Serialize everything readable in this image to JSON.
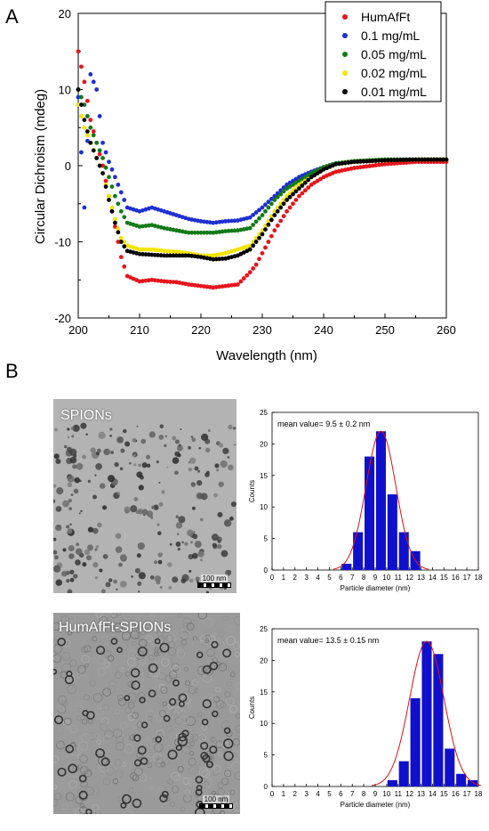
{
  "panels": {
    "a": "A",
    "b": "B"
  },
  "cd_chart": {
    "ylabel": "Circular Dichroism (mdeg)",
    "xlabel": "Wavelength (nm)"
  },
  "micrographs": {
    "spions": {
      "label": "SPIONs",
      "scale": "100 nm"
    },
    "humafft": {
      "label": "HumAfFt-SPIONs",
      "scale": "100 nm"
    }
  },
  "colors": {
    "HumAfFt": "#e8141b",
    "0.1 mg/mL": "#1f2fd2",
    "0.05 mg/mL": "#137a18",
    "0.02 mg/mL": "#f2e400",
    "0.01 mg/mL": "#000000",
    "hist_bar": "#1010cc",
    "fit_line": "#e01010"
  },
  "chart_data": [
    {
      "type": "scatter",
      "xlabel": "Wavelength (nm)",
      "ylabel": "Circular Dichroism (mdeg)",
      "xlim": [
        200,
        260
      ],
      "ylim": [
        -20,
        20
      ],
      "xticks": [
        200,
        210,
        220,
        230,
        240,
        250,
        260
      ],
      "yticks": [
        -20,
        -10,
        0,
        10,
        20
      ],
      "legend_position": "top-right",
      "grid": false,
      "series": [
        {
          "name": "HumAfFt",
          "x": [
            200,
            201,
            202,
            203,
            204,
            205,
            206,
            207,
            208,
            210,
            212,
            214,
            216,
            218,
            220,
            222,
            224,
            226,
            228,
            229,
            230,
            231,
            232,
            234,
            236,
            238,
            240,
            242,
            245,
            250,
            255,
            260
          ],
          "y": [
            15,
            11,
            6,
            3,
            0,
            -4,
            -8,
            -12,
            -14.5,
            -15.2,
            -15,
            -15.2,
            -15.3,
            -15.6,
            -15.8,
            -16,
            -15.8,
            -15.6,
            -14,
            -13,
            -11.5,
            -10,
            -8.5,
            -6,
            -4,
            -2.5,
            -1.5,
            -0.8,
            -0.3,
            0.2,
            0.5,
            0.5
          ]
        },
        {
          "name": "0.1 mg/mL",
          "x": [
            200,
            201,
            202,
            203,
            204,
            205,
            206,
            207,
            208,
            210,
            212,
            214,
            216,
            218,
            220,
            222,
            224,
            226,
            228,
            230,
            232,
            234,
            236,
            238,
            240,
            242,
            245,
            250,
            255,
            260
          ],
          "y": [
            9,
            -5.5,
            12,
            10,
            3,
            0.5,
            -1.5,
            -3.5,
            -5.5,
            -6,
            -5.5,
            -6,
            -6.5,
            -7,
            -7.3,
            -7.5,
            -7.3,
            -7.2,
            -6.8,
            -5.5,
            -4,
            -2.5,
            -1.5,
            -0.8,
            -0.2,
            0.3,
            0.5,
            0.8,
            0.8,
            0.8
          ]
        },
        {
          "name": "0.05 mg/mL",
          "x": [
            200,
            201,
            202,
            203,
            204,
            205,
            206,
            207,
            208,
            210,
            212,
            214,
            216,
            218,
            220,
            222,
            224,
            226,
            228,
            230,
            232,
            234,
            236,
            238,
            240,
            242,
            245,
            250,
            255,
            260
          ],
          "y": [
            10,
            8,
            5,
            3,
            1,
            -1.5,
            -4,
            -6,
            -7.5,
            -8,
            -7.8,
            -8.2,
            -8.5,
            -8.8,
            -8.8,
            -8.8,
            -8.6,
            -8.5,
            -8.2,
            -6.5,
            -4.5,
            -3,
            -2,
            -1,
            -0.2,
            0.3,
            0.6,
            0.8,
            0.8,
            0.8
          ]
        },
        {
          "name": "0.02 mg/mL",
          "x": [
            200,
            201,
            202,
            203,
            204,
            205,
            206,
            207,
            208,
            210,
            212,
            214,
            216,
            218,
            220,
            222,
            224,
            226,
            228,
            230,
            232,
            234,
            236,
            238,
            240,
            242,
            245,
            250,
            255,
            260
          ],
          "y": [
            8,
            5,
            3,
            1,
            -1,
            -4,
            -7,
            -9.5,
            -10.5,
            -11,
            -11,
            -11.2,
            -11.3,
            -11.5,
            -11.8,
            -11.8,
            -11.5,
            -11,
            -10.5,
            -8.5,
            -6,
            -4,
            -2.5,
            -1.5,
            -0.5,
            0.2,
            0.5,
            0.7,
            0.8,
            0.8
          ]
        },
        {
          "name": "0.01 mg/mL",
          "x": [
            200,
            201,
            202,
            203,
            204,
            205,
            206,
            207,
            208,
            210,
            212,
            214,
            216,
            218,
            220,
            222,
            224,
            226,
            228,
            230,
            232,
            234,
            236,
            238,
            240,
            242,
            245,
            250,
            255,
            260
          ],
          "y": [
            10,
            6,
            3,
            1,
            -1,
            -4.5,
            -7.5,
            -10,
            -11.2,
            -11.6,
            -11.7,
            -11.8,
            -11.8,
            -11.8,
            -12,
            -12.3,
            -12.2,
            -11.8,
            -11,
            -9,
            -6.5,
            -4.5,
            -3,
            -1.5,
            -0.5,
            0.2,
            0.5,
            0.7,
            0.8,
            0.8
          ]
        }
      ]
    },
    {
      "type": "bar",
      "annotation": "mean value=  9.5 ± 0.2 nm",
      "xlabel": "Particle diameter (nm)",
      "ylabel": "Counts",
      "xlim": [
        0,
        18
      ],
      "ylim": [
        0,
        25
      ],
      "xticks": [
        0,
        1,
        2,
        3,
        4,
        5,
        6,
        7,
        8,
        9,
        10,
        11,
        12,
        13,
        14,
        15,
        16,
        17,
        18
      ],
      "yticks": [
        0,
        5,
        10,
        15,
        20,
        25
      ],
      "bins": [
        6.5,
        7.5,
        8.5,
        9.5,
        10.5,
        11.5,
        12.5
      ],
      "values": [
        1,
        6,
        18,
        22,
        12,
        6,
        3
      ],
      "fit": {
        "type": "gaussian",
        "center": 9.5,
        "sigma": 1.3,
        "amplitude": 22
      }
    },
    {
      "type": "bar",
      "annotation": "mean value= 13.5 ± 0.15 nm",
      "xlabel": "Particle diameter (nm)",
      "ylabel": "Counts",
      "xlim": [
        0,
        18
      ],
      "ylim": [
        0,
        25
      ],
      "xticks": [
        0,
        1,
        2,
        3,
        4,
        5,
        6,
        7,
        8,
        9,
        10,
        11,
        12,
        13,
        14,
        15,
        16,
        17,
        18
      ],
      "yticks": [
        0,
        5,
        10,
        15,
        20,
        25
      ],
      "bins": [
        10.5,
        11.5,
        12.5,
        13.5,
        14.5,
        15.5,
        16.5,
        17.5
      ],
      "values": [
        1,
        4,
        14,
        23,
        21,
        6,
        2,
        1
      ],
      "fit": {
        "type": "gaussian",
        "center": 13.5,
        "sigma": 1.5,
        "amplitude": 23
      }
    }
  ]
}
